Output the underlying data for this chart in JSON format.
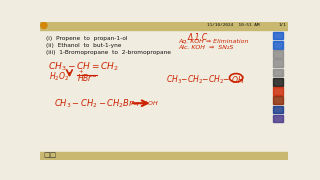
{
  "bg_color": "#f0ede0",
  "header_bg": "#c8b870",
  "text_color_red": "#cc2200",
  "text_color_black": "#111111",
  "lines_left": [
    "(i)  Propene  to  propan-1-ol",
    "(ii)  Ethanol  to  but-1-yne",
    "(iii)  1-Bromopropane  to  2-bromopropane"
  ],
  "timestamp": "11/10/2024  10:51 AM",
  "toolbar_colors": [
    "#1155cc",
    "#1155cc",
    "#888888",
    "#888888",
    "#888888",
    "#111111",
    "#cc2200",
    "#882200",
    "#113388",
    "#443388"
  ]
}
